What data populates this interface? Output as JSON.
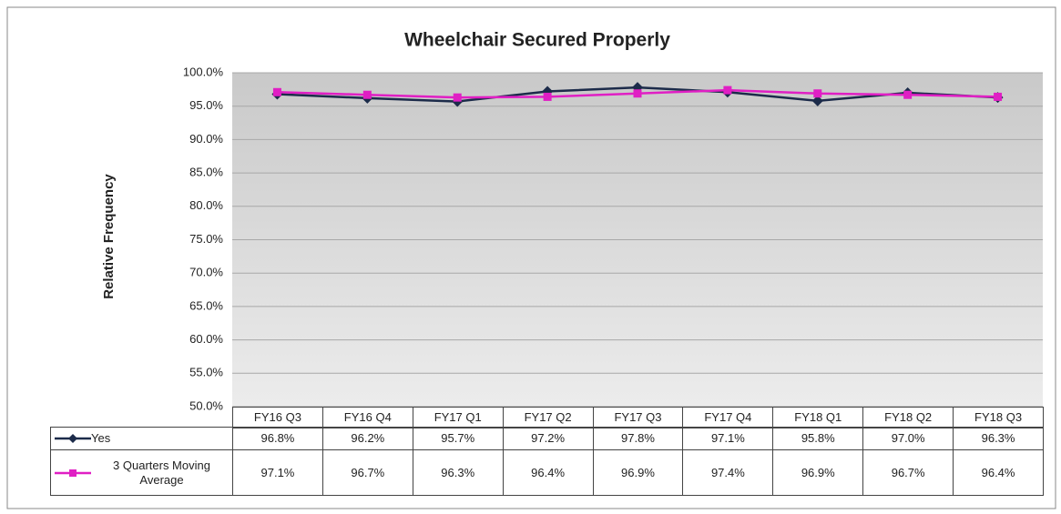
{
  "chart_data": {
    "type": "line",
    "title": "Wheelchair Secured Properly",
    "y_label": "Relative Frequency",
    "categories": [
      "FY16 Q3",
      "FY16 Q4",
      "FY17 Q1",
      "FY17 Q2",
      "FY17 Q3",
      "FY17 Q4",
      "FY18 Q1",
      "FY18 Q2",
      "FY18 Q3"
    ],
    "series": [
      {
        "name": "Yes",
        "color": "#1c2b4a",
        "values": [
          96.8,
          96.2,
          95.7,
          97.2,
          97.8,
          97.1,
          95.8,
          97.0,
          96.3
        ],
        "value_labels": [
          "96.8%",
          "96.2%",
          "95.7%",
          "97.2%",
          "97.8%",
          "97.1%",
          "95.8%",
          "97.0%",
          "96.3%"
        ]
      },
      {
        "name": "3 Quarters Moving Average",
        "color": "#e01fc4",
        "values": [
          97.1,
          96.7,
          96.3,
          96.4,
          96.9,
          97.4,
          96.9,
          96.7,
          96.4
        ],
        "value_labels": [
          "97.1%",
          "96.7%",
          "96.3%",
          "96.4%",
          "96.9%",
          "97.4%",
          "96.9%",
          "96.7%",
          "96.4%"
        ]
      }
    ],
    "ylim": [
      50,
      100
    ],
    "yticks": [
      {
        "value": 50,
        "label": "50.0%"
      },
      {
        "value": 55,
        "label": "55.0%"
      },
      {
        "value": 60,
        "label": "60.0%"
      },
      {
        "value": 65,
        "label": "65.0%"
      },
      {
        "value": 70,
        "label": "70.0%"
      },
      {
        "value": 75,
        "label": "75.0%"
      },
      {
        "value": 80,
        "label": "80.0%"
      },
      {
        "value": 85,
        "label": "85.0%"
      },
      {
        "value": 90,
        "label": "90.0%"
      },
      {
        "value": 95,
        "label": "95.0%"
      },
      {
        "value": 100,
        "label": "100.0%"
      }
    ],
    "grid": true
  }
}
